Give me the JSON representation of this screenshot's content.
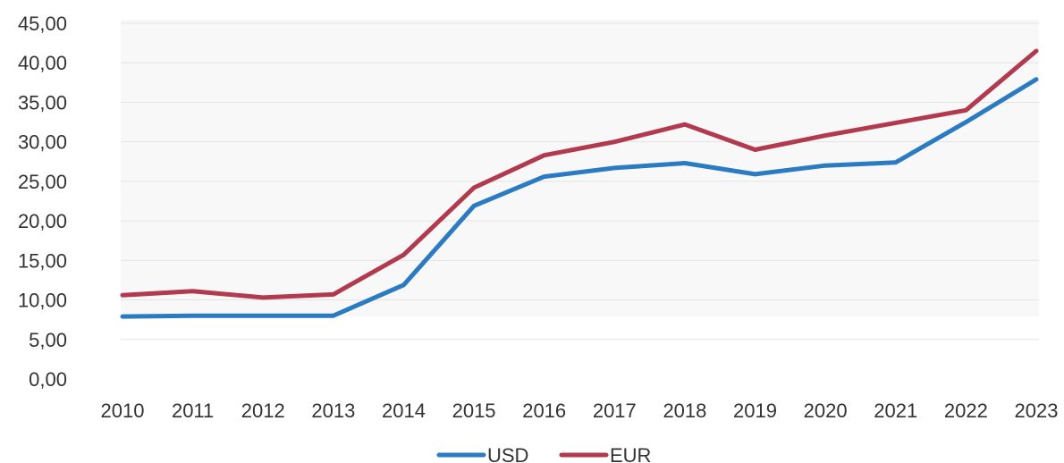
{
  "chart_data": {
    "type": "line",
    "title": "",
    "xlabel": "",
    "ylabel": "",
    "categories": [
      "2010",
      "2011",
      "2012",
      "2013",
      "2014",
      "2015",
      "2016",
      "2017",
      "2018",
      "2019",
      "2020",
      "2021",
      "2022",
      "2023"
    ],
    "yticks": [
      "0,00",
      "5,00",
      "10,00",
      "15,00",
      "20,00",
      "25,00",
      "30,00",
      "35,00",
      "40,00",
      "45,00"
    ],
    "ylim": [
      0,
      45
    ],
    "grid": true,
    "legend_position": "bottom",
    "series": [
      {
        "name": "USD",
        "color": "#2A7BC1",
        "values": [
          7.9,
          8.0,
          8.0,
          8.0,
          11.9,
          21.9,
          25.6,
          26.7,
          27.3,
          25.9,
          27.0,
          27.4,
          32.5,
          37.9
        ]
      },
      {
        "name": "EUR",
        "color": "#B23A4E",
        "values": [
          10.6,
          11.1,
          10.3,
          10.7,
          15.7,
          24.2,
          28.3,
          30.0,
          32.2,
          29.0,
          30.8,
          32.4,
          34.0,
          41.5
        ]
      }
    ]
  }
}
